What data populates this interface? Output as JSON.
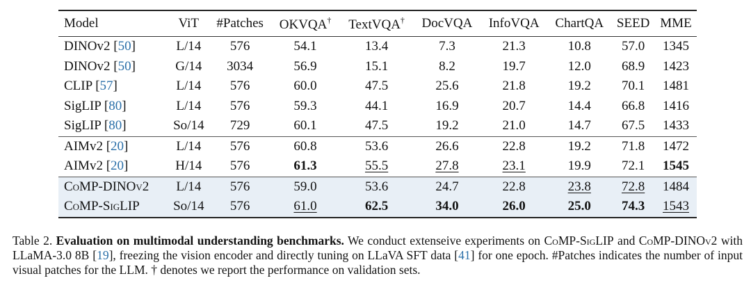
{
  "table": {
    "headers": [
      {
        "text": "Model",
        "dagger": false
      },
      {
        "text": "ViT",
        "dagger": false
      },
      {
        "text": "#Patches",
        "dagger": false
      },
      {
        "text": "OKVQA",
        "dagger": true
      },
      {
        "text": "TextVQA",
        "dagger": true
      },
      {
        "text": "DocVQA",
        "dagger": false
      },
      {
        "text": "InfoVQA",
        "dagger": false
      },
      {
        "text": "ChartQA",
        "dagger": false
      },
      {
        "text": "SEED",
        "dagger": false
      },
      {
        "text": "MME",
        "dagger": false
      }
    ],
    "dagger_symbol": "†",
    "rows": [
      {
        "model": "DINOv2",
        "cite": "50",
        "vit": "L/14",
        "patches": "576",
        "scores": [
          {
            "v": "54.1"
          },
          {
            "v": "13.4"
          },
          {
            "v": "7.3"
          },
          {
            "v": "21.3"
          },
          {
            "v": "10.8"
          },
          {
            "v": "57.0"
          },
          {
            "v": "1345"
          }
        ]
      },
      {
        "model": "DINOv2",
        "cite": "50",
        "vit": "G/14",
        "patches": "3034",
        "scores": [
          {
            "v": "56.9"
          },
          {
            "v": "15.1"
          },
          {
            "v": "8.2"
          },
          {
            "v": "19.7"
          },
          {
            "v": "12.0"
          },
          {
            "v": "68.9"
          },
          {
            "v": "1423"
          }
        ]
      },
      {
        "model": "CLIP",
        "cite": "57",
        "vit": "L/14",
        "patches": "576",
        "scores": [
          {
            "v": "60.0"
          },
          {
            "v": "47.5"
          },
          {
            "v": "25.6"
          },
          {
            "v": "21.8"
          },
          {
            "v": "19.2"
          },
          {
            "v": "70.1"
          },
          {
            "v": "1481"
          }
        ]
      },
      {
        "model": "SigLIP",
        "cite": "80",
        "vit": "L/14",
        "patches": "576",
        "scores": [
          {
            "v": "59.3"
          },
          {
            "v": "44.1"
          },
          {
            "v": "16.9"
          },
          {
            "v": "20.7"
          },
          {
            "v": "14.4"
          },
          {
            "v": "66.8"
          },
          {
            "v": "1416"
          }
        ]
      },
      {
        "model": "SigLIP",
        "cite": "80",
        "vit": "So/14",
        "patches": "729",
        "scores": [
          {
            "v": "60.1"
          },
          {
            "v": "47.5"
          },
          {
            "v": "19.2"
          },
          {
            "v": "21.0"
          },
          {
            "v": "14.7"
          },
          {
            "v": "67.5"
          },
          {
            "v": "1433"
          }
        ]
      },
      {
        "model": "AIMv2",
        "cite": "20",
        "vit": "L/14",
        "patches": "576",
        "group_start": true,
        "scores": [
          {
            "v": "60.8"
          },
          {
            "v": "53.6"
          },
          {
            "v": "26.6"
          },
          {
            "v": "22.8"
          },
          {
            "v": "19.2"
          },
          {
            "v": "71.8"
          },
          {
            "v": "1472"
          }
        ]
      },
      {
        "model": "AIMv2",
        "cite": "20",
        "vit": "H/14",
        "patches": "576",
        "scores": [
          {
            "v": "61.3",
            "bold": true
          },
          {
            "v": "55.5",
            "underline": true
          },
          {
            "v": "27.8",
            "underline": true
          },
          {
            "v": "23.1",
            "underline": true
          },
          {
            "v": "19.9"
          },
          {
            "v": "72.1"
          },
          {
            "v": "1545",
            "bold": true
          }
        ]
      },
      {
        "model": "CoMP-DINOv2",
        "cite": "",
        "vit": "L/14",
        "patches": "576",
        "group_start": true,
        "ours": true,
        "scores": [
          {
            "v": "59.0"
          },
          {
            "v": "53.6"
          },
          {
            "v": "24.7"
          },
          {
            "v": "22.8"
          },
          {
            "v": "23.8",
            "underline": true
          },
          {
            "v": "72.8",
            "underline": true
          },
          {
            "v": "1484"
          }
        ]
      },
      {
        "model": "CoMP-SigLIP",
        "cite": "",
        "vit": "So/14",
        "patches": "576",
        "ours": true,
        "last": true,
        "scores": [
          {
            "v": "61.0",
            "underline": true
          },
          {
            "v": "62.5",
            "bold": true
          },
          {
            "v": "34.0",
            "bold": true
          },
          {
            "v": "26.0",
            "bold": true
          },
          {
            "v": "25.0",
            "bold": true
          },
          {
            "v": "74.3",
            "bold": true
          },
          {
            "v": "1543",
            "underline": true
          }
        ]
      }
    ]
  },
  "caption": {
    "label": "Table 2.",
    "title": "Evaluation on multimodal understanding benchmarks.",
    "p1": " We conduct extenseive experiments on ",
    "m1": "CoMP-SigLIP",
    "p2": " and ",
    "m2": "CoMP-DINOv2",
    "p3": " with LLaMA-3.0 8B [",
    "c1": "19",
    "p4": "], freezing the vision encoder and directly tuning on LLaVA SFT data [",
    "c2": "41",
    "p5": "] for one epoch. #Patches indicates the number of input visual patches for the LLM. † denotes we report the performance on validation sets."
  }
}
